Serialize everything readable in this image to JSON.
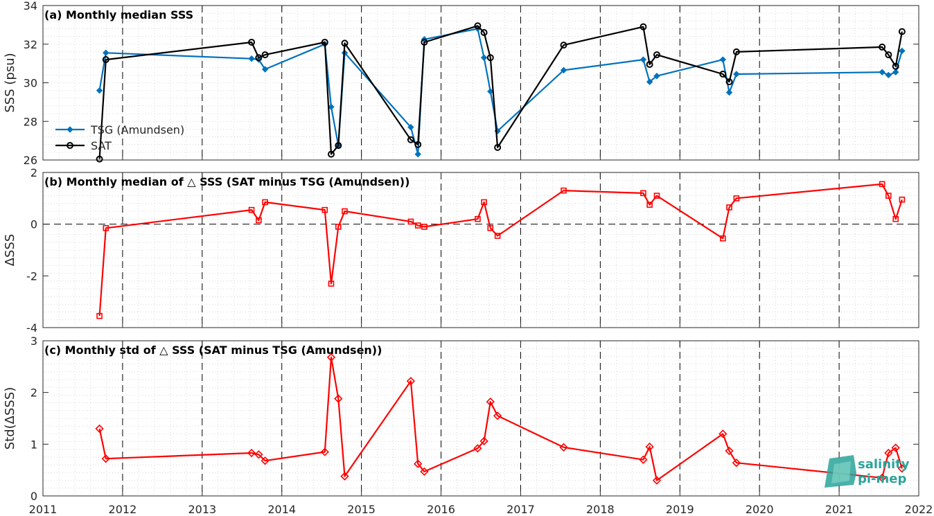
{
  "chart_data": [
    {
      "type": "line",
      "title": "(a) Monthly median SSS",
      "ylabel": "SSS (psu)",
      "xlim": [
        2011,
        2022
      ],
      "ylim": [
        26,
        34
      ],
      "yticks": [
        26,
        28,
        30,
        32,
        34
      ],
      "grid": "minor-dotted",
      "legend_position": "lower-left",
      "series": [
        {
          "name": "TSG (Amundsen)",
          "color": "#0072BD",
          "marker": "diamond-filled",
          "points": [
            [
              2011.71,
              29.6
            ],
            [
              2011.79,
              31.55
            ],
            [
              2013.62,
              31.25
            ],
            [
              2013.71,
              31.2
            ],
            [
              2013.79,
              30.7
            ],
            [
              2014.54,
              32.0
            ],
            [
              2014.62,
              28.75
            ],
            [
              2014.71,
              26.75
            ],
            [
              2014.79,
              31.55
            ],
            [
              2015.62,
              27.7
            ],
            [
              2015.71,
              26.3
            ],
            [
              2015.79,
              32.25
            ],
            [
              2016.46,
              32.8
            ],
            [
              2016.54,
              31.3
            ],
            [
              2016.62,
              29.55
            ],
            [
              2016.71,
              27.5
            ],
            [
              2017.54,
              30.65
            ],
            [
              2018.54,
              31.2
            ],
            [
              2018.62,
              30.05
            ],
            [
              2018.71,
              30.35
            ],
            [
              2019.54,
              31.2
            ],
            [
              2019.62,
              29.5
            ],
            [
              2019.71,
              30.45
            ],
            [
              2021.54,
              30.55
            ],
            [
              2021.62,
              30.4
            ],
            [
              2021.71,
              30.55
            ],
            [
              2021.79,
              31.65
            ]
          ]
        },
        {
          "name": "SAT",
          "color": "#000000",
          "marker": "circle-open",
          "points": [
            [
              2011.71,
              26.05
            ],
            [
              2011.79,
              31.2
            ],
            [
              2013.62,
              32.1
            ],
            [
              2013.71,
              31.3
            ],
            [
              2013.79,
              31.45
            ],
            [
              2014.54,
              32.1
            ],
            [
              2014.62,
              26.3
            ],
            [
              2014.71,
              26.75
            ],
            [
              2014.79,
              32.05
            ],
            [
              2015.62,
              27.05
            ],
            [
              2015.71,
              26.8
            ],
            [
              2015.79,
              32.1
            ],
            [
              2016.46,
              32.95
            ],
            [
              2016.54,
              32.6
            ],
            [
              2016.62,
              31.3
            ],
            [
              2016.71,
              26.65
            ],
            [
              2017.54,
              31.95
            ],
            [
              2018.54,
              32.9
            ],
            [
              2018.62,
              30.95
            ],
            [
              2018.71,
              31.45
            ],
            [
              2019.54,
              30.45
            ],
            [
              2019.62,
              30.05
            ],
            [
              2019.71,
              31.6
            ],
            [
              2021.54,
              31.85
            ],
            [
              2021.62,
              31.45
            ],
            [
              2021.71,
              30.85
            ],
            [
              2021.79,
              32.65
            ]
          ]
        }
      ]
    },
    {
      "type": "line",
      "title": "(b) Monthly median of △ SSS (SAT minus TSG (Amundsen))",
      "ylabel": "ΔSSS",
      "xlim": [
        2011,
        2022
      ],
      "ylim": [
        -4,
        2
      ],
      "yticks": [
        -4,
        -2,
        0,
        2
      ],
      "zero_line": true,
      "grid": "minor-dotted",
      "series": [
        {
          "name": "",
          "color": "#FF0000",
          "marker": "square-open",
          "points": [
            [
              2011.71,
              -3.55
            ],
            [
              2011.79,
              -0.15
            ],
            [
              2013.62,
              0.55
            ],
            [
              2013.71,
              0.15
            ],
            [
              2013.79,
              0.85
            ],
            [
              2014.54,
              0.55
            ],
            [
              2014.62,
              -2.3
            ],
            [
              2014.71,
              -0.1
            ],
            [
              2014.79,
              0.5
            ],
            [
              2015.62,
              0.1
            ],
            [
              2015.71,
              -0.05
            ],
            [
              2015.79,
              -0.1
            ],
            [
              2016.46,
              0.2
            ],
            [
              2016.54,
              0.85
            ],
            [
              2016.62,
              -0.15
            ],
            [
              2016.71,
              -0.45
            ],
            [
              2017.54,
              1.3
            ],
            [
              2018.54,
              1.2
            ],
            [
              2018.62,
              0.75
            ],
            [
              2018.71,
              1.1
            ],
            [
              2019.54,
              -0.55
            ],
            [
              2019.62,
              0.65
            ],
            [
              2019.71,
              1.0
            ],
            [
              2021.54,
              1.55
            ],
            [
              2021.62,
              1.1
            ],
            [
              2021.71,
              0.2
            ],
            [
              2021.79,
              0.95
            ]
          ]
        }
      ]
    },
    {
      "type": "line",
      "title": "(c) Monthly std of △ SSS (SAT minus TSG (Amundsen))",
      "ylabel": "Std(ΔSSS)",
      "xlim": [
        2011,
        2022
      ],
      "ylim": [
        0,
        3
      ],
      "yticks": [
        0,
        1,
        2,
        3
      ],
      "xticks": [
        2011,
        2012,
        2013,
        2014,
        2015,
        2016,
        2017,
        2018,
        2019,
        2020,
        2021,
        2022
      ],
      "grid": "minor-dotted",
      "series": [
        {
          "name": "",
          "color": "#FF0000",
          "marker": "diamond-open",
          "points": [
            [
              2011.71,
              1.3
            ],
            [
              2011.79,
              0.72
            ],
            [
              2013.62,
              0.83
            ],
            [
              2013.71,
              0.8
            ],
            [
              2013.79,
              0.68
            ],
            [
              2014.54,
              0.85
            ],
            [
              2014.62,
              2.68
            ],
            [
              2014.71,
              1.88
            ],
            [
              2014.79,
              0.38
            ],
            [
              2015.62,
              2.22
            ],
            [
              2015.71,
              0.62
            ],
            [
              2015.79,
              0.47
            ],
            [
              2016.46,
              0.92
            ],
            [
              2016.54,
              1.06
            ],
            [
              2016.62,
              1.82
            ],
            [
              2016.71,
              1.55
            ],
            [
              2017.54,
              0.94
            ],
            [
              2018.54,
              0.7
            ],
            [
              2018.62,
              0.95
            ],
            [
              2018.71,
              0.3
            ],
            [
              2019.54,
              1.2
            ],
            [
              2019.62,
              0.87
            ],
            [
              2019.71,
              0.64
            ],
            [
              2021.54,
              0.35
            ],
            [
              2021.62,
              0.83
            ],
            [
              2021.71,
              0.93
            ],
            [
              2021.79,
              0.53
            ]
          ]
        }
      ]
    }
  ],
  "logo": {
    "line1": "salinity",
    "line2": "pi-mep",
    "color": "#2aa39a"
  }
}
